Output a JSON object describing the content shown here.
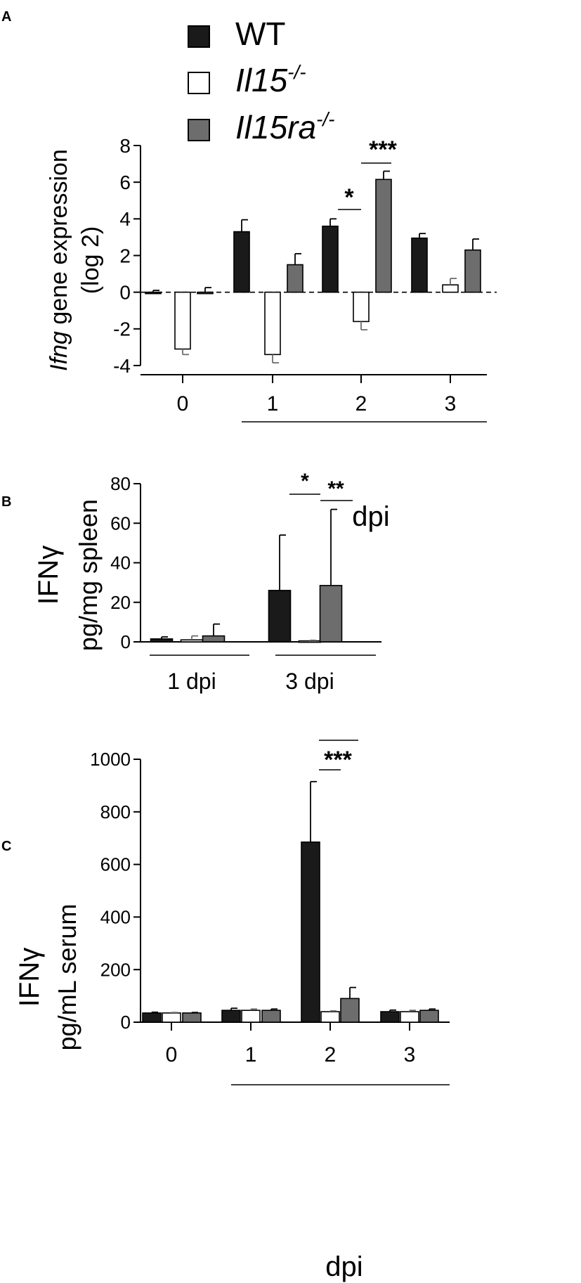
{
  "legend": {
    "items": [
      {
        "label": "WT",
        "italic": false,
        "sup": "",
        "color": "#1a1a1a"
      },
      {
        "label": "Il15",
        "italic": true,
        "sup": "-/-",
        "color": "#ffffff"
      },
      {
        "label": "Il15ra",
        "italic": true,
        "sup": "-/-",
        "color": "#6d6d6d"
      }
    ]
  },
  "colors": {
    "wt": "#1a1a1a",
    "il15": "#ffffff",
    "il15ra": "#6d6d6d",
    "axis": "#000000"
  },
  "chart_data": [
    {
      "panel": "A",
      "type": "bar",
      "ylabel_italic": "Ifng",
      "ylabel_rest": " gene expression",
      "ylabel_line2": "(log 2)",
      "xlabel": "dpi",
      "categories": [
        "0",
        "1",
        "2",
        "3"
      ],
      "ylim": [
        -4.5,
        8
      ],
      "yticks": [
        8,
        6,
        4,
        2,
        0,
        -2,
        -4
      ],
      "reference_line": 0,
      "series": [
        {
          "name": "WT",
          "values": [
            0.0,
            3.3,
            3.6,
            2.95
          ],
          "errors": [
            0.1,
            0.65,
            0.4,
            0.25
          ]
        },
        {
          "name": "Il15-/-",
          "values": [
            -3.1,
            -3.4,
            -1.6,
            0.4
          ],
          "errors": [
            0.3,
            0.45,
            0.45,
            0.35
          ]
        },
        {
          "name": "Il15ra-/-",
          "values": [
            0.0,
            1.5,
            6.15,
            2.3
          ],
          "errors": [
            0.25,
            0.6,
            0.45,
            0.6
          ]
        }
      ],
      "significance": [
        {
          "label": "*",
          "category": "2",
          "from": "WT",
          "to": "Il15-/-"
        },
        {
          "label": "***",
          "category": "2",
          "from": "Il15-/-",
          "to": "Il15ra-/-"
        }
      ]
    },
    {
      "panel": "B",
      "type": "bar",
      "ylabel": "IFNγ",
      "ylabel_line2": "pg/mg spleen",
      "categories": [
        "1 dpi",
        "3 dpi"
      ],
      "ylim": [
        0,
        80
      ],
      "yticks": [
        80,
        60,
        40,
        20,
        0
      ],
      "series": [
        {
          "name": "WT",
          "values": [
            1.5,
            26
          ],
          "errors": [
            1,
            28
          ]
        },
        {
          "name": "Il15-/-",
          "values": [
            1.0,
            0.5
          ],
          "errors": [
            2,
            0.3
          ]
        },
        {
          "name": "Il15ra-/-",
          "values": [
            3,
            28.5
          ],
          "errors": [
            6,
            38.5
          ]
        }
      ],
      "significance": [
        {
          "label": "*",
          "category": "3 dpi",
          "from": "WT",
          "to": "Il15-/-"
        },
        {
          "label": "**",
          "category": "3 dpi",
          "from": "Il15-/-",
          "to": "Il15ra-/-"
        }
      ]
    },
    {
      "panel": "C",
      "type": "bar",
      "ylabel": "IFNγ",
      "ylabel_line2": "pg/mL serum",
      "xlabel": "dpi",
      "categories": [
        "0",
        "1",
        "2",
        "3"
      ],
      "ylim": [
        0,
        1000
      ],
      "yticks": [
        1000,
        800,
        600,
        400,
        200,
        0
      ],
      "series": [
        {
          "name": "WT",
          "values": [
            35,
            45,
            685,
            40
          ],
          "errors": [
            3,
            8,
            230,
            6
          ]
        },
        {
          "name": "Il15-/-",
          "values": [
            35,
            45,
            40,
            40
          ],
          "errors": [
            2,
            5,
            3,
            5
          ]
        },
        {
          "name": "Il15ra-/-",
          "values": [
            35,
            45,
            90,
            45
          ],
          "errors": [
            2,
            5,
            42,
            5
          ]
        }
      ],
      "significance": [
        {
          "label": "***",
          "category": "2",
          "from": "WT",
          "to": "Il15-/-"
        },
        {
          "label": "***",
          "category": "2",
          "from": "WT",
          "to": "Il15ra-/-"
        }
      ]
    }
  ]
}
